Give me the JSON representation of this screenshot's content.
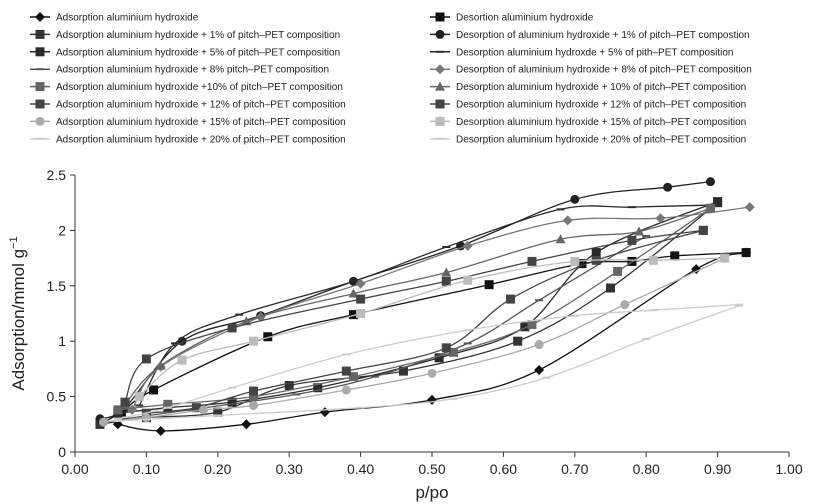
{
  "chart_data": {
    "type": "scatter",
    "xlabel": "p/po",
    "ylabel": "Adsorption/mmol g",
    "ylabel_sup": "−1",
    "xlim": [
      0,
      1
    ],
    "ylim": [
      0,
      2.5
    ],
    "xticks": [
      "0.00",
      "0.10",
      "0.20",
      "0.30",
      "0.40",
      "0.50",
      "0.60",
      "0.70",
      "0.80",
      "0.90",
      "1.00"
    ],
    "yticks": [
      "0",
      "0.5",
      "1",
      "1.5",
      "2",
      "2.5"
    ],
    "legend_position": "top",
    "series": [
      {
        "name": "Adsorption aluminium hydroxide",
        "branch": "ads",
        "color": "#111111",
        "marker": "diamond",
        "points": [
          [
            0.06,
            0.25
          ],
          [
            0.12,
            0.19
          ],
          [
            0.24,
            0.25
          ],
          [
            0.35,
            0.36
          ],
          [
            0.5,
            0.47
          ],
          [
            0.65,
            0.74
          ],
          [
            0.87,
            1.65
          ],
          [
            0.94,
            1.8
          ]
        ]
      },
      {
        "name": "Desortion aluminium hydroxide",
        "branch": "des",
        "color": "#111111",
        "marker": "square",
        "points": [
          [
            0.94,
            1.8
          ],
          [
            0.84,
            1.77
          ],
          [
            0.78,
            1.72
          ],
          [
            0.71,
            1.7
          ],
          [
            0.58,
            1.51
          ],
          [
            0.39,
            1.24
          ],
          [
            0.27,
            1.04
          ],
          [
            0.11,
            0.56
          ],
          [
            0.065,
            0.36
          ],
          [
            0.035,
            0.25
          ]
        ]
      },
      {
        "name": "Adsorption aluminium hydroxide + 1% of pitch–PET composition",
        "branch": "ads",
        "color": "#333333",
        "marker": "square",
        "points": [
          [
            0.035,
            0.25
          ],
          [
            0.1,
            0.31
          ],
          [
            0.2,
            0.36
          ],
          [
            0.3,
            0.6
          ],
          [
            0.46,
            0.73
          ],
          [
            0.62,
            1.0
          ],
          [
            0.75,
            1.48
          ],
          [
            0.9,
            2.25
          ]
        ]
      },
      {
        "name": "Desorption of aluminium hydroxide + 1% of pitch–PET compostion",
        "branch": "des",
        "color": "#222222",
        "marker": "circle",
        "points": [
          [
            0.89,
            2.44
          ],
          [
            0.83,
            2.39
          ],
          [
            0.7,
            2.28
          ],
          [
            0.54,
            1.86
          ],
          [
            0.39,
            1.54
          ],
          [
            0.26,
            1.23
          ],
          [
            0.15,
            1.0
          ],
          [
            0.07,
            0.4
          ],
          [
            0.035,
            0.3
          ]
        ]
      },
      {
        "name": "Adsorption aluminium hydroxide + 5% of pitch–PET composition",
        "branch": "ads",
        "color": "#2a2a2a",
        "marker": "square",
        "points": [
          [
            0.06,
            0.35
          ],
          [
            0.13,
            0.4
          ],
          [
            0.22,
            0.45
          ],
          [
            0.34,
            0.58
          ],
          [
            0.51,
            0.85
          ],
          [
            0.63,
            1.13
          ],
          [
            0.73,
            1.8
          ],
          [
            0.9,
            2.26
          ]
        ]
      },
      {
        "name": "Desorption aluminium hydroxde + 5% of pith–PET composition",
        "branch": "des",
        "color": "#2a2a2a",
        "marker": "dash",
        "points": [
          [
            0.9,
            2.23
          ],
          [
            0.78,
            2.21
          ],
          [
            0.68,
            2.19
          ],
          [
            0.52,
            1.85
          ],
          [
            0.39,
            1.54
          ],
          [
            0.23,
            1.24
          ],
          [
            0.14,
            0.98
          ],
          [
            0.09,
            0.42
          ]
        ]
      },
      {
        "name": "Adsorption aluminium hydroxide + 8% pitch–PET composition",
        "branch": "ads",
        "color": "#555555",
        "marker": "dash",
        "points": [
          [
            0.07,
            0.3
          ],
          [
            0.16,
            0.38
          ],
          [
            0.31,
            0.52
          ],
          [
            0.42,
            0.68
          ],
          [
            0.55,
            0.98
          ],
          [
            0.65,
            1.37
          ],
          [
            0.8,
            1.95
          ]
        ]
      },
      {
        "name": "Desorption of aluminium hydroxide + 8% of pitch–PET composition",
        "branch": "des",
        "color": "#777777",
        "marker": "diamond",
        "points": [
          [
            0.945,
            2.21
          ],
          [
            0.82,
            2.11
          ],
          [
            0.69,
            2.09
          ],
          [
            0.55,
            1.86
          ],
          [
            0.4,
            1.52
          ],
          [
            0.26,
            1.22
          ],
          [
            0.12,
            0.77
          ],
          [
            0.08,
            0.38
          ]
        ]
      },
      {
        "name": "Adsorption aluminium hydroxide +10% of pitch–PET composition",
        "branch": "ads",
        "color": "#666666",
        "marker": "square",
        "points": [
          [
            0.06,
            0.38
          ],
          [
            0.13,
            0.43
          ],
          [
            0.25,
            0.5
          ],
          [
            0.39,
            0.68
          ],
          [
            0.53,
            0.9
          ],
          [
            0.64,
            1.15
          ],
          [
            0.76,
            1.63
          ],
          [
            0.89,
            2.2
          ]
        ]
      },
      {
        "name": "Desorption aluminium hydroxide + 10%  of pitch–PET composition",
        "branch": "des",
        "color": "#666666",
        "marker": "triangle",
        "points": [
          [
            0.89,
            2.2
          ],
          [
            0.79,
            1.99
          ],
          [
            0.68,
            1.92
          ],
          [
            0.52,
            1.62
          ],
          [
            0.39,
            1.43
          ],
          [
            0.24,
            1.18
          ],
          [
            0.12,
            0.78
          ],
          [
            0.07,
            0.43
          ]
        ]
      },
      {
        "name": "Adsorption aluminium hydroxide + 12% of pitch–PET composition",
        "branch": "ads",
        "color": "#444444",
        "marker": "square",
        "points": [
          [
            0.1,
            0.35
          ],
          [
            0.17,
            0.4
          ],
          [
            0.25,
            0.55
          ],
          [
            0.38,
            0.73
          ],
          [
            0.52,
            0.94
          ],
          [
            0.61,
            1.38
          ],
          [
            0.73,
            1.73
          ],
          [
            0.88,
            2.0
          ]
        ]
      },
      {
        "name": "Desorption aluminium hydroxide + 12% of pitch–PET composition",
        "branch": "des",
        "color": "#444444",
        "marker": "square",
        "points": [
          [
            0.88,
            2.0
          ],
          [
            0.78,
            1.91
          ],
          [
            0.64,
            1.72
          ],
          [
            0.52,
            1.54
          ],
          [
            0.4,
            1.38
          ],
          [
            0.22,
            1.12
          ],
          [
            0.1,
            0.84
          ],
          [
            0.07,
            0.45
          ]
        ]
      },
      {
        "name": "Adsorption aluminium hydroxide + 15% of pitch–PET composition",
        "branch": "ads",
        "color": "#aaaaaa",
        "marker": "circle",
        "points": [
          [
            0.04,
            0.27
          ],
          [
            0.1,
            0.31
          ],
          [
            0.18,
            0.38
          ],
          [
            0.25,
            0.42
          ],
          [
            0.38,
            0.56
          ],
          [
            0.5,
            0.71
          ],
          [
            0.65,
            0.97
          ],
          [
            0.77,
            1.33
          ],
          [
            0.91,
            1.75
          ]
        ]
      },
      {
        "name": "Desorption aluminium hydroxide + 15% of pitch–PET composition",
        "branch": "des",
        "color": "#bbbbbb",
        "marker": "square",
        "points": [
          [
            0.91,
            1.75
          ],
          [
            0.81,
            1.73
          ],
          [
            0.7,
            1.72
          ],
          [
            0.55,
            1.55
          ],
          [
            0.4,
            1.25
          ],
          [
            0.25,
            1.0
          ],
          [
            0.15,
            0.83
          ],
          [
            0.09,
            0.5
          ]
        ]
      },
      {
        "name": "Adsorption aluminium hydroxide + 20% of pitch–PET composition",
        "branch": "ads",
        "color": "#cccccc",
        "marker": "dash",
        "points": [
          [
            0.06,
            0.28
          ],
          [
            0.2,
            0.33
          ],
          [
            0.4,
            0.4
          ],
          [
            0.53,
            0.48
          ],
          [
            0.66,
            0.67
          ],
          [
            0.8,
            1.02
          ],
          [
            0.93,
            1.32
          ]
        ]
      },
      {
        "name": "Desorption aluminium hydroxide + 20% of pitch–PET composition",
        "branch": "des",
        "color": "#cccccc",
        "marker": "dash",
        "points": [
          [
            0.93,
            1.33
          ],
          [
            0.81,
            1.28
          ],
          [
            0.7,
            1.23
          ],
          [
            0.55,
            1.1
          ],
          [
            0.38,
            0.88
          ],
          [
            0.22,
            0.58
          ],
          [
            0.13,
            0.4
          ],
          [
            0.06,
            0.3
          ]
        ]
      }
    ]
  }
}
